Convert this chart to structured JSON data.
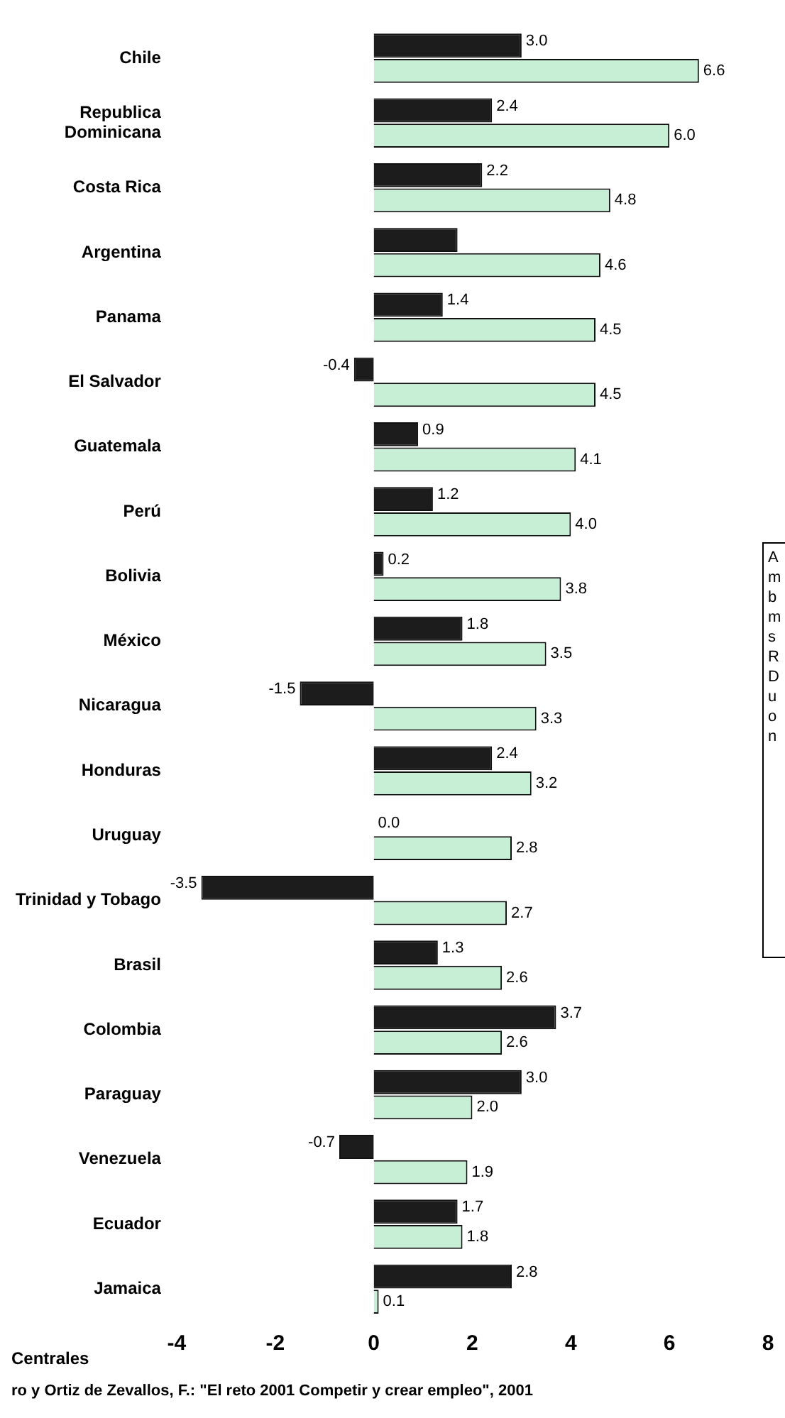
{
  "chart_data": {
    "type": "bar",
    "orientation": "horizontal",
    "categories": [
      "Chile",
      "Republica Dominicana",
      "Costa Rica",
      "Argentina",
      "Panama",
      "El Salvador",
      "Guatemala",
      "Perú",
      "Bolivia",
      "México",
      "Nicaragua",
      "Honduras",
      "Uruguay",
      "Trinidad y Tobago",
      "Brasil",
      "Colombia",
      "Paraguay",
      "Venezuela",
      "Ecuador",
      "Jamaica"
    ],
    "series": [
      {
        "color": "#1c1c1c",
        "values": [
          3.0,
          2.4,
          2.2,
          1.7,
          1.4,
          -0.4,
          0.9,
          1.2,
          0.2,
          1.8,
          -1.5,
          2.4,
          0.0,
          -3.5,
          1.3,
          3.7,
          3.0,
          -0.7,
          1.7,
          2.8
        ],
        "value_labels": [
          "3.0",
          "2.4",
          "2.2",
          null,
          "1.4",
          "-0.4",
          "0.9",
          "1.2",
          "0.2",
          "1.8",
          "-1.5",
          "2.4",
          "0.0",
          "-3.5",
          "1.3",
          "3.7",
          "3.0",
          "-0.7",
          "1.7",
          "2.8"
        ]
      },
      {
        "color": "#c6efd6",
        "values": [
          6.6,
          6.0,
          4.8,
          4.6,
          4.5,
          4.5,
          4.1,
          4.0,
          3.8,
          3.5,
          3.3,
          3.2,
          2.8,
          2.7,
          2.6,
          2.6,
          2.0,
          1.9,
          1.8,
          0.1
        ],
        "value_labels": [
          "6.6",
          "6.0",
          "4.8",
          "4.6",
          "4.5",
          "4.5",
          "4.1",
          "4.0",
          "3.8",
          "3.5",
          "3.3",
          "3.2",
          "2.8",
          "2.7",
          "2.6",
          "2.6",
          "2.0",
          "1.9",
          "1.8",
          "0.1"
        ]
      }
    ],
    "xlim": [
      -4,
      8
    ],
    "xticks": [
      -4,
      -2,
      0,
      2,
      4,
      6,
      8
    ],
    "grid": false,
    "legend": false,
    "annotations": [
      "A\nm\nb\nm\ns\nR\nD\nu\no\nn",
      "Centrales",
      "ro y Ortiz de Zevallos, F.: \"El reto 2001 Competir y crear empleo\", 2001"
    ]
  }
}
